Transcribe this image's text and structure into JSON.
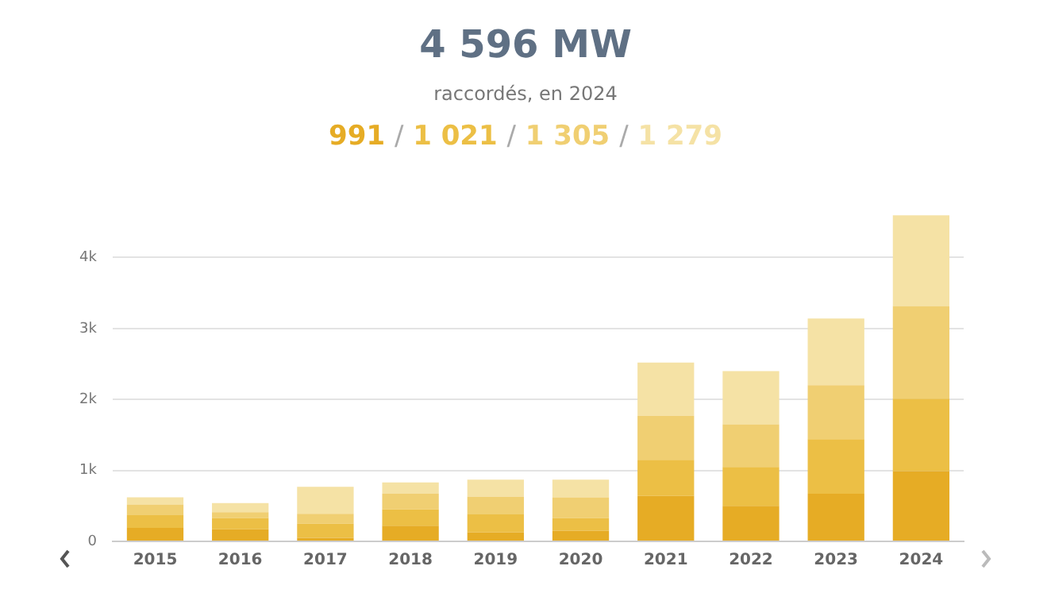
{
  "chart_data": {
    "type": "bar",
    "stacked": true,
    "title": "4 596 MW",
    "subtitle": "raccordés, en 2024",
    "annotations": [
      "991 / 1 021 / 1 305 / 1 279"
    ],
    "categories": [
      "2015",
      "2016",
      "2017",
      "2018",
      "2019",
      "2020",
      "2021",
      "2022",
      "2023",
      "2024"
    ],
    "series": [
      {
        "color": "#e6ac25",
        "values": [
          190,
          170,
          50,
          220,
          130,
          150,
          640,
          500,
          670,
          991
        ]
      },
      {
        "color": "#ecbf45",
        "values": [
          180,
          160,
          200,
          230,
          250,
          180,
          510,
          550,
          770,
          1021
        ]
      },
      {
        "color": "#f0cf72",
        "values": [
          150,
          80,
          140,
          220,
          250,
          290,
          620,
          600,
          760,
          1305
        ]
      },
      {
        "color": "#f5e2a5",
        "values": [
          100,
          130,
          380,
          160,
          240,
          250,
          750,
          750,
          940,
          1279
        ]
      }
    ],
    "ylim": [
      0,
      4600
    ],
    "yticks": [
      0,
      {
        "value": 1000,
        "label": "1k"
      },
      {
        "value": 2000,
        "label": "2k"
      },
      {
        "value": 3000,
        "label": "3k"
      },
      {
        "value": 4000,
        "label": "4k"
      }
    ],
    "grid": "y",
    "legend": false
  }
}
